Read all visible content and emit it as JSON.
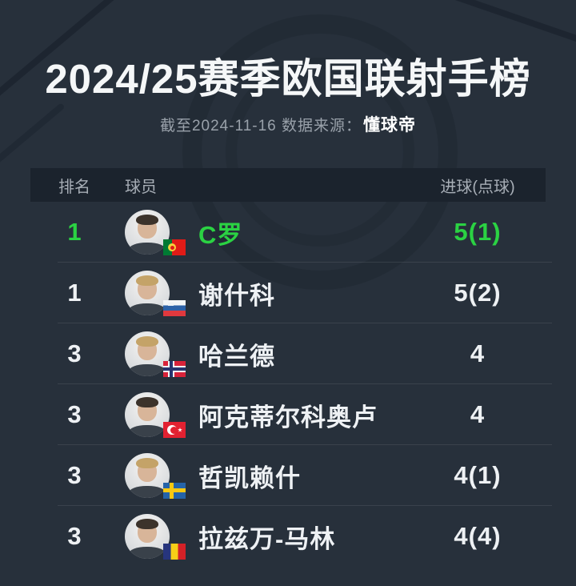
{
  "page": {
    "background_color": "#27303b",
    "header_bar_color": "#1b232d",
    "accent_green": "#2bd243",
    "text_white": "#f5f7f8",
    "text_gray": "#99a1aa"
  },
  "header": {
    "title": "2024/25赛季欧国联射手榜",
    "subtitle_prefix": "截至2024-11-16 数据来源：",
    "source": "懂球帝"
  },
  "table": {
    "columns": {
      "rank": "排名",
      "player": "球员",
      "goals": "进球(点球)"
    },
    "rows": [
      {
        "rank": "1",
        "name": "C罗",
        "goals": "5(1)",
        "flag": "portugal",
        "hair": "dark",
        "highlight": true
      },
      {
        "rank": "1",
        "name": "谢什科",
        "goals": "5(2)",
        "flag": "slovenia",
        "hair": "blond",
        "highlight": false
      },
      {
        "rank": "3",
        "name": "哈兰德",
        "goals": "4",
        "flag": "norway",
        "hair": "blond",
        "highlight": false
      },
      {
        "rank": "3",
        "name": "阿克蒂尔科奥卢",
        "goals": "4",
        "flag": "turkey",
        "hair": "dark",
        "highlight": false
      },
      {
        "rank": "3",
        "name": "哲凯赖什",
        "goals": "4(1)",
        "flag": "sweden",
        "hair": "blond",
        "highlight": false
      },
      {
        "rank": "3",
        "name": "拉兹万-马林",
        "goals": "4(4)",
        "flag": "romania",
        "hair": "dark",
        "highlight": false
      }
    ]
  },
  "chart_data": {
    "type": "table",
    "title": "2024/25赛季欧国联射手榜",
    "subtitle": "截至2024-11-16 数据来源：懂球帝",
    "columns": [
      "排名",
      "球员",
      "进球(点球)"
    ],
    "rows": [
      [
        "1",
        "C罗",
        "5(1)"
      ],
      [
        "1",
        "谢什科",
        "5(2)"
      ],
      [
        "3",
        "哈兰德",
        "4"
      ],
      [
        "3",
        "阿克蒂尔科奥卢",
        "4"
      ],
      [
        "3",
        "哲凯赖什",
        "4(1)"
      ],
      [
        "3",
        "拉兹万-马林",
        "4(4)"
      ]
    ],
    "goals": [
      5,
      5,
      4,
      4,
      4,
      4
    ],
    "penalties": [
      1,
      2,
      0,
      0,
      1,
      4
    ],
    "countries": [
      "portugal",
      "slovenia",
      "norway",
      "turkey",
      "sweden",
      "romania"
    ],
    "highlighted_row": 0
  }
}
